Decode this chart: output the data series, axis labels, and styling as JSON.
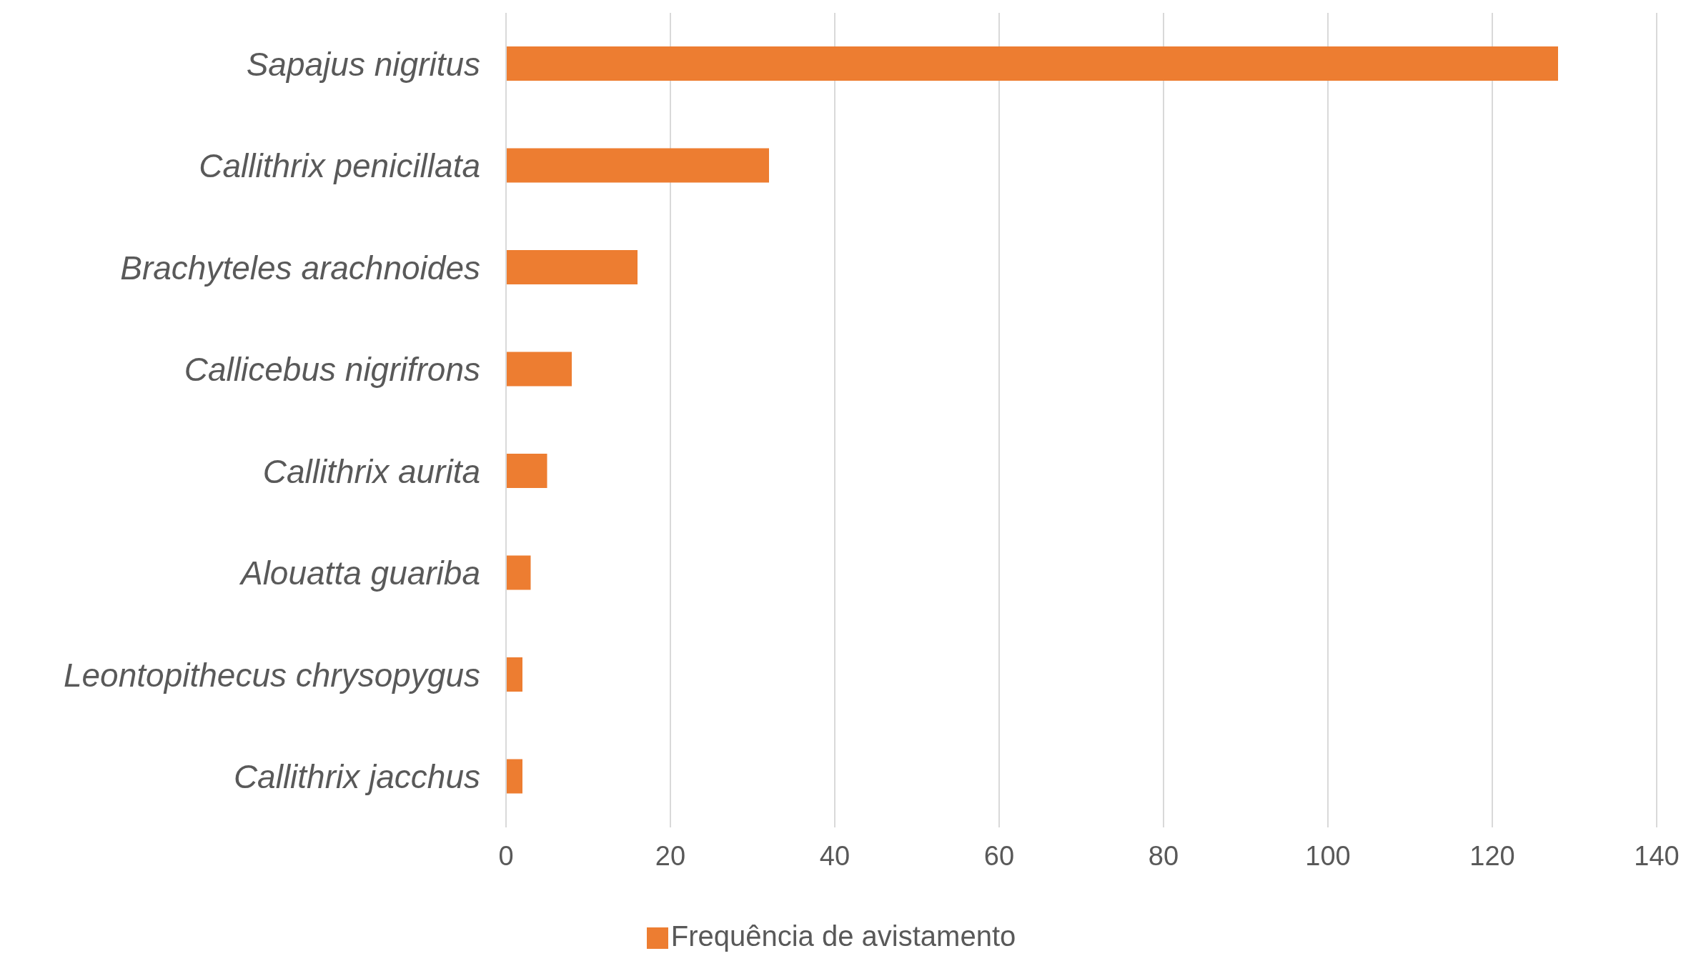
{
  "chart_data": {
    "type": "bar",
    "orientation": "horizontal",
    "categories": [
      "Sapajus nigritus",
      "Callithrix penicillata",
      "Brachyteles arachnoides",
      "Callicebus nigrifrons",
      "Callithrix aurita",
      "Alouatta guariba",
      "Leontopithecus chrysopygus",
      "Callithrix jacchus"
    ],
    "series": [
      {
        "name": "Frequência de avistamento",
        "color": "#ed7d31",
        "values": [
          128,
          32,
          16,
          8,
          5,
          3,
          2,
          2
        ]
      }
    ],
    "xlim": [
      0,
      140
    ],
    "xticks": [
      0,
      20,
      40,
      60,
      80,
      100,
      120,
      140
    ],
    "grid": "x",
    "legend": "bottom"
  }
}
